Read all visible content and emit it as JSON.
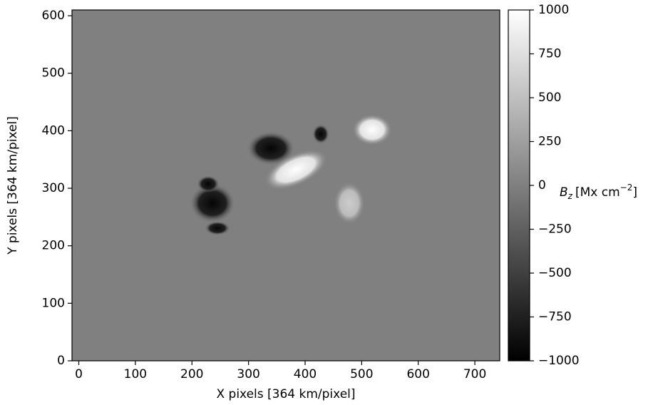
{
  "chart_data": {
    "type": "image",
    "xlabel": "X pixels [364 km/pixel]",
    "ylabel": "Y pixels [364 km/pixel]",
    "xlim": [
      -12,
      744
    ],
    "ylim": [
      0,
      610
    ],
    "xticks": [
      0,
      100,
      200,
      300,
      400,
      500,
      600,
      700
    ],
    "yticks": [
      0,
      100,
      200,
      300,
      400,
      500,
      600
    ],
    "colormap": "gray",
    "clim": [
      -1000,
      1000
    ],
    "colorbar_ticks": [
      {
        "value": -1000,
        "label": "−1000"
      },
      {
        "value": -750,
        "label": "−750"
      },
      {
        "value": -500,
        "label": "−500"
      },
      {
        "value": -250,
        "label": "−250"
      },
      0,
      250,
      500,
      750,
      1000
    ],
    "colorbar_label": {
      "symbol": "B",
      "subscript": "z",
      "unit": "[Mx cm",
      "exponent": "−2",
      "close": "]"
    }
  }
}
